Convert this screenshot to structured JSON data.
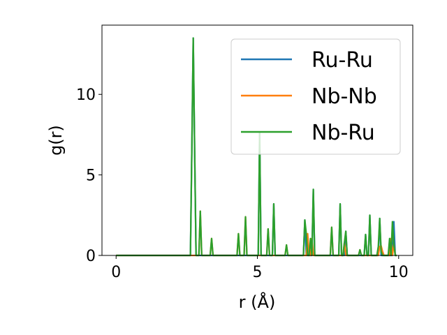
{
  "chart_data": {
    "type": "line",
    "xlabel": "r (Å)",
    "ylabel": "g(r)",
    "xlim": [
      -0.5,
      10.5
    ],
    "ylim": [
      0,
      14.3
    ],
    "xticks": [
      "0",
      "5",
      "10"
    ],
    "xtick_values": [
      0,
      5,
      10
    ],
    "yticks": [
      "0",
      "5",
      "10"
    ],
    "ytick_values": [
      0,
      5,
      10
    ],
    "grid": false,
    "legend_position": "top-right",
    "series": [
      {
        "name": "Ru-Ru",
        "color": "#1f77b4",
        "x": [
          0,
          2.58,
          2.63,
          2.68,
          2.73,
          2.78,
          2.83,
          2.88,
          2.93,
          2.98,
          3.03,
          3.08,
          3.13,
          3.38,
          3.43,
          3.48,
          4.33,
          4.38,
          4.43,
          4.58,
          4.63,
          4.68,
          4.73,
          4.78,
          5.03,
          5.08,
          5.13,
          5.18,
          5.23,
          5.48,
          5.53,
          5.58,
          5.63,
          5.68,
          5.73,
          6.03,
          6.08,
          6.13,
          6.58,
          6.63,
          6.68,
          6.73,
          6.78,
          6.83,
          6.88,
          6.93,
          6.98,
          7.03,
          7.08,
          7.13,
          7.58,
          7.63,
          7.68,
          7.73,
          7.83,
          7.88,
          7.93,
          7.98,
          8.03,
          8.08,
          8.13,
          8.18,
          8.23,
          8.63,
          8.68,
          8.73,
          8.78,
          8.83,
          8.88,
          8.93,
          8.98,
          9.03,
          9.08,
          9.13,
          9.23,
          9.28,
          9.33,
          9.38,
          9.43,
          9.48,
          9.53,
          9.58,
          9.63,
          9.68,
          9.73,
          9.78,
          9.83,
          9.88,
          9.93
        ],
        "y": [
          0,
          0,
          0,
          6.5,
          13.5,
          6.5,
          0,
          0,
          0,
          0,
          0,
          0,
          0,
          0,
          0,
          0,
          0,
          0,
          0,
          0,
          0,
          0,
          0,
          0,
          0,
          7.6,
          0,
          0,
          0,
          0,
          0,
          3.2,
          0,
          0,
          0,
          0,
          0,
          0,
          0,
          0,
          2.2,
          0,
          0,
          0,
          0,
          0,
          4.1,
          0,
          0,
          0,
          0,
          0,
          0,
          0,
          0,
          0,
          3.2,
          0,
          0,
          0,
          1.5,
          0,
          0,
          0,
          0,
          0,
          0,
          1.3,
          0,
          0,
          2.5,
          0,
          0,
          0,
          0,
          0,
          2.3,
          0,
          0,
          0,
          0,
          0,
          0,
          0,
          0,
          0,
          2.1,
          0,
          0
        ]
      },
      {
        "name": "Nb-Nb",
        "color": "#ff7f0e",
        "x": [
          0,
          2.58,
          2.63,
          2.68,
          2.73,
          2.78,
          2.83,
          2.88,
          2.93,
          2.98,
          3.03,
          3.08,
          3.13,
          3.33,
          3.38,
          3.43,
          3.48,
          4.23,
          4.28,
          4.33,
          4.38,
          4.43,
          4.53,
          4.58,
          4.63,
          4.68,
          4.73,
          5.03,
          5.08,
          5.13,
          5.33,
          5.38,
          5.43,
          5.48,
          5.98,
          6.03,
          6.08,
          6.13,
          6.73,
          6.78,
          6.83,
          6.88,
          6.93,
          6.98,
          7.03,
          7.08,
          7.13,
          7.53,
          7.58,
          7.63,
          7.68,
          7.73,
          7.78,
          8.03,
          8.08,
          8.13,
          8.18,
          8.23,
          8.58,
          8.63,
          8.68,
          8.73,
          8.78,
          9.28,
          9.33,
          9.38,
          9.43,
          9.48,
          9.53,
          9.58,
          9.63,
          9.68,
          9.73,
          9.78,
          9.83,
          9.88,
          9.93
        ],
        "y": [
          0,
          0,
          0,
          0,
          0,
          0,
          0,
          0,
          0,
          2.75,
          0,
          0,
          0,
          0,
          1.05,
          0,
          0,
          0,
          0,
          1.35,
          0,
          0,
          0,
          2.4,
          0,
          0,
          0,
          0,
          0,
          0,
          0,
          1.65,
          0,
          0,
          0,
          0.65,
          0,
          0,
          0,
          1.35,
          0,
          0,
          1.05,
          0,
          0,
          0,
          0,
          0,
          0,
          1.75,
          0,
          0,
          0,
          0,
          0.8,
          0,
          0,
          0,
          0,
          0.35,
          0,
          0,
          0,
          0,
          0.55,
          0.6,
          0.25,
          0,
          0,
          0,
          0,
          0,
          1.05,
          0,
          0.7,
          0,
          0
        ]
      },
      {
        "name": "Nb-Ru",
        "color": "#2ca02c",
        "x": [
          0,
          2.58,
          2.63,
          2.68,
          2.73,
          2.78,
          2.83,
          2.88,
          2.93,
          2.98,
          3.03,
          3.08,
          3.13,
          3.33,
          3.38,
          3.43,
          3.48,
          4.23,
          4.28,
          4.33,
          4.38,
          4.43,
          4.53,
          4.58,
          4.63,
          4.68,
          4.73,
          5.03,
          5.08,
          5.13,
          5.18,
          5.33,
          5.38,
          5.43,
          5.48,
          5.53,
          5.58,
          5.63,
          5.68,
          5.98,
          6.03,
          6.08,
          6.13,
          6.58,
          6.63,
          6.68,
          6.73,
          6.78,
          6.83,
          6.88,
          6.93,
          6.98,
          7.03,
          7.08,
          7.13,
          7.53,
          7.58,
          7.63,
          7.68,
          7.73,
          7.78,
          7.83,
          7.88,
          7.93,
          7.98,
          8.03,
          8.08,
          8.13,
          8.18,
          8.23,
          8.58,
          8.63,
          8.68,
          8.73,
          8.78,
          8.83,
          8.88,
          8.93,
          8.98,
          9.03,
          9.08,
          9.13,
          9.23,
          9.28,
          9.33,
          9.38,
          9.43,
          9.48,
          9.53,
          9.58,
          9.63,
          9.68,
          9.73,
          9.78,
          9.83,
          9.88,
          9.93
        ],
        "y": [
          0,
          0,
          0,
          6.5,
          13.5,
          6.5,
          0,
          0,
          0,
          2.75,
          0,
          0,
          0,
          0,
          1.05,
          0,
          0,
          0,
          0,
          1.35,
          0,
          0,
          0,
          2.4,
          0,
          0,
          0,
          0,
          7.6,
          0,
          0,
          0,
          1.65,
          0,
          0,
          0,
          3.2,
          0,
          0,
          0,
          0.65,
          0,
          0,
          0,
          0,
          2.2,
          1.35,
          0,
          0,
          1.05,
          0,
          4.1,
          0,
          0,
          0,
          0,
          0,
          1.75,
          0,
          0,
          0,
          0,
          0,
          3.2,
          0,
          0,
          0.8,
          1.5,
          0,
          0,
          0,
          0.35,
          0,
          0,
          0,
          1.3,
          0,
          0,
          2.5,
          0,
          0,
          0,
          0,
          0.55,
          2.3,
          0.25,
          0,
          0,
          0,
          0,
          0,
          1.05,
          0,
          2.1,
          0.7,
          0,
          0
        ]
      }
    ]
  }
}
